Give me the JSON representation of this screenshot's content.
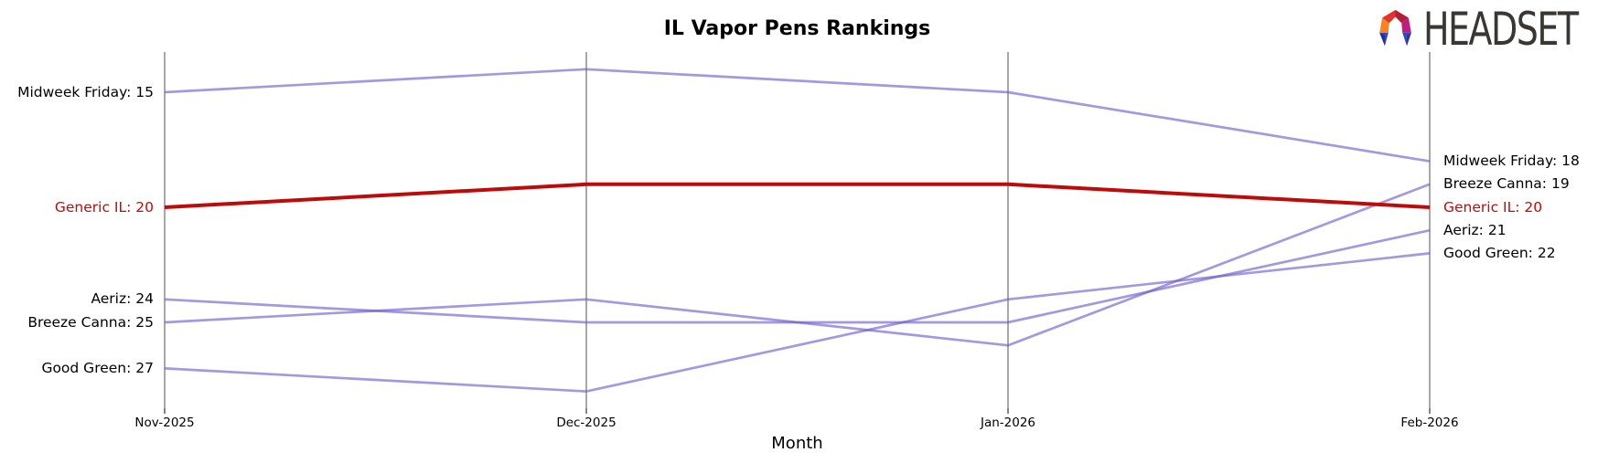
{
  "header": {
    "title": "IL Vapor Pens Rankings"
  },
  "brand": {
    "name": "HEADSET",
    "icon": "headset-logo-icon"
  },
  "colors": {
    "line": "#6a5acd",
    "line_highlight": "#bf0a0a",
    "axis": "#a8a8a8",
    "tick": "#333333",
    "label": "#000000",
    "label_highlight": "#c00a0a",
    "title": "#000000",
    "brand_text": "#3a3633"
  },
  "chart_data": {
    "type": "line",
    "subtype": "bump-ranking",
    "title": "IL Vapor Pens Rankings",
    "xlabel": "Month",
    "ylabel": "",
    "y_axis": {
      "inverted": true,
      "meaning": "brand rank (lower is better)",
      "range_visible": [
        14,
        28
      ]
    },
    "grid": "vertical-month-axes-only",
    "legend_position": "inline-edge-labels",
    "categories": [
      "Nov-2025",
      "Dec-2025",
      "Jan-2026",
      "Feb-2026"
    ],
    "series": [
      {
        "name": "Midweek Friday",
        "values": [
          15,
          14,
          15,
          18
        ],
        "highlight": false,
        "left_label": "Midweek Friday: 15",
        "right_label": "Midweek Friday: 18"
      },
      {
        "name": "Aeriz",
        "values": [
          24,
          25,
          25,
          21
        ],
        "highlight": false,
        "left_label": "Aeriz: 24",
        "right_label": "Aeriz: 21"
      },
      {
        "name": "Breeze Canna",
        "values": [
          25,
          24,
          26,
          19
        ],
        "highlight": false,
        "left_label": "Breeze Canna: 25",
        "right_label": "Breeze Canna: 19"
      },
      {
        "name": "Good Green",
        "values": [
          27,
          28,
          24,
          22
        ],
        "highlight": false,
        "left_label": "Good Green: 27",
        "right_label": "Good Green: 22"
      },
      {
        "name": "Generic IL",
        "values": [
          20,
          19,
          19,
          20
        ],
        "highlight": true,
        "left_label": "Generic IL: 20",
        "right_label": "Generic IL: 20"
      }
    ]
  }
}
